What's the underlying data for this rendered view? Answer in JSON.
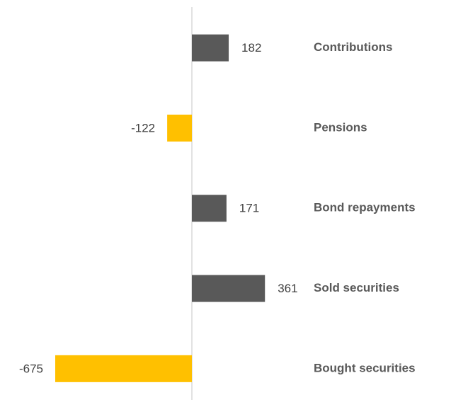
{
  "chart_data": {
    "type": "hbar",
    "categories": [
      "Contributions",
      "Pensions",
      "Bond repayments",
      "Sold securities",
      "Bought securities"
    ],
    "values": [
      182,
      -122,
      171,
      361,
      -675
    ],
    "colors": [
      "#595959",
      "#ffc000",
      "#595959",
      "#595959",
      "#ffc000"
    ]
  }
}
